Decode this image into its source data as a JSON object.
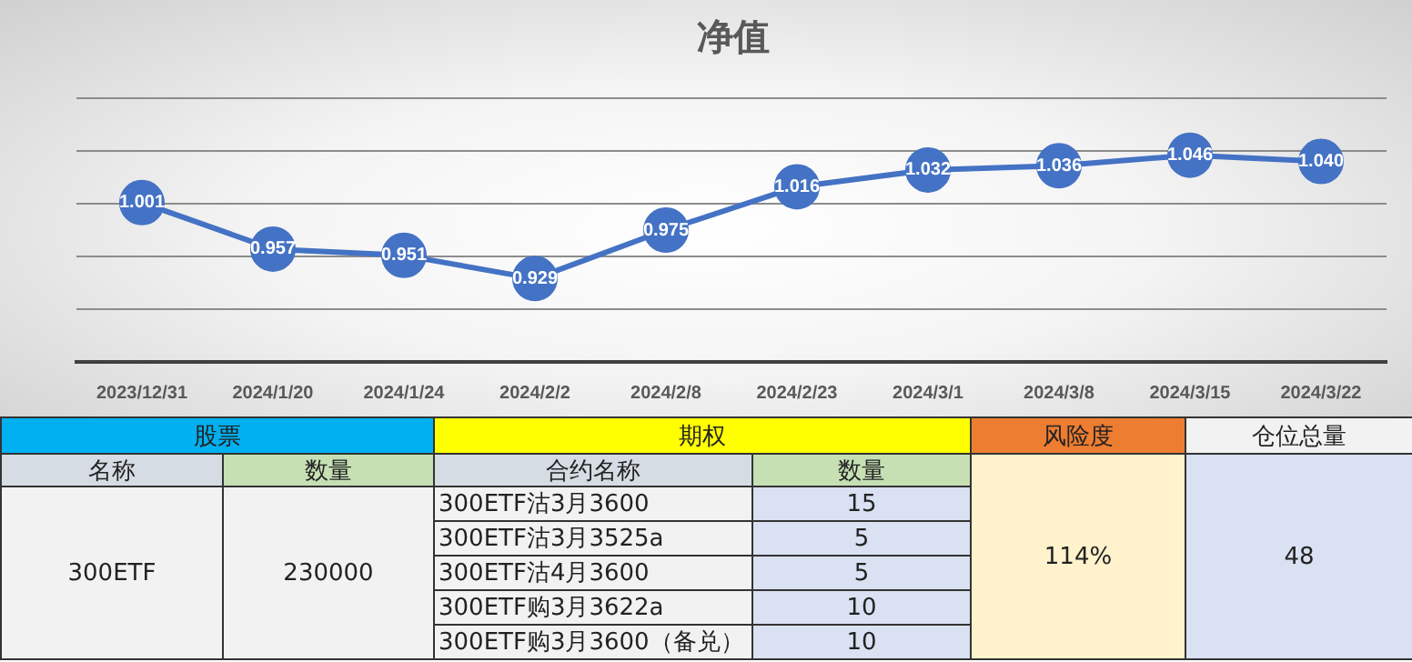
{
  "chart_data": [
    {
      "type": "line",
      "title": "净值",
      "categories": [
        "2023/12/31",
        "2024/1/20",
        "2024/1/24",
        "2024/2/2",
        "2024/2/8",
        "2024/2/23",
        "2024/3/1",
        "2024/3/8",
        "2024/3/15",
        "2024/3/22"
      ],
      "series": [
        {
          "color": "#4472c4",
          "values": [
            1.001,
            0.957,
            0.951,
            0.929,
            0.975,
            1.016,
            1.032,
            1.036,
            1.046,
            1.04
          ],
          "value_labels": [
            "1.001",
            "0.957",
            "0.951",
            "0.929",
            "0.975",
            "1.016",
            "1.032",
            "1.036",
            "1.046",
            "1.040"
          ]
        }
      ],
      "ylim": [
        0.85,
        1.1
      ],
      "yticks": [
        {
          "value": 0.85,
          "label": null
        },
        {
          "value": 0.9,
          "label": null
        },
        {
          "value": 0.95,
          "label": null
        },
        {
          "value": 1.0,
          "label": null
        },
        {
          "value": 1.05,
          "label": null
        },
        {
          "value": 1.1,
          "label": null
        }
      ],
      "grid": "y",
      "tick_labels": "x",
      "marker": "circle",
      "line_style": "solid",
      "legend": false
    },
    {
      "type": "other",
      "annotations": [
        "股票",
        "期权",
        "风险度",
        "仓位总量",
        "名称",
        "数量",
        "合约名称",
        "数量",
        "300ETF",
        "230000",
        "300ETF沽3月3600",
        "15",
        "300ETF沽3月3525a",
        "5",
        "300ETF沽4月3600",
        "5",
        "300ETF购3月3622a",
        "10",
        "300ETF购3月3600（备兑）",
        "10",
        "114%",
        "48"
      ]
    }
  ]
}
